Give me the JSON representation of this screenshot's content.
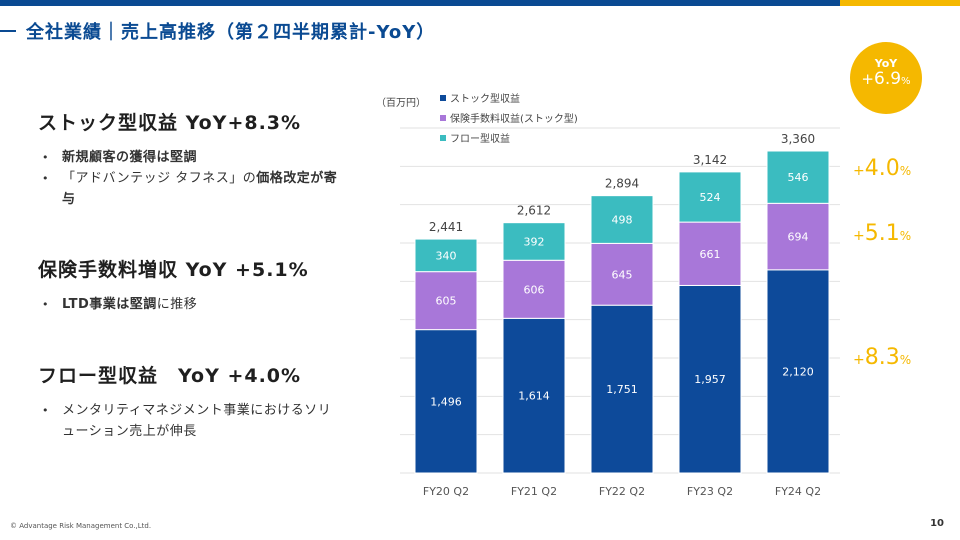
{
  "page": {
    "title": "全社業績｜売上高推移（第２四半期累計-YoY）",
    "copyright": "© Advantage Risk Management Co.,Ltd.",
    "page_number": "10"
  },
  "colors": {
    "brand_blue": "#0a4a92",
    "accent_yellow": "#f5b800",
    "stock": "#0d4a9a",
    "insurance": "#a877d9",
    "flow": "#3bbcc0"
  },
  "sections": [
    {
      "heading": "ストック型収益 YoY+8.3%",
      "bullets": [
        {
          "parts": [
            {
              "text": "新規顧客の獲得は堅調",
              "bold": true
            }
          ]
        },
        {
          "parts": [
            {
              "text": "「アドバンテッジ タフネス」の",
              "bold": false
            },
            {
              "text": "価格改定が寄与",
              "bold": true
            }
          ]
        }
      ]
    },
    {
      "heading": "保険手数料増収 YoY +5.1%",
      "bullets": [
        {
          "parts": [
            {
              "text": "LTD事業は堅調",
              "bold": true
            },
            {
              "text": "に推移",
              "bold": false
            }
          ]
        }
      ]
    },
    {
      "heading": "フロー型収益　YoY +4.0%",
      "bullets": [
        {
          "parts": [
            {
              "text": "メンタリティマネジメント事業におけるソリューション売上が伸長",
              "bold": false
            }
          ]
        }
      ]
    }
  ],
  "yoy_badge": {
    "label": "YoY",
    "sign": "+",
    "value": "6.9",
    "unit": "%"
  },
  "growth_labels": [
    {
      "sign": "+",
      "value": "4.0",
      "unit": "%"
    },
    {
      "sign": "+",
      "value": "5.1",
      "unit": "%"
    },
    {
      "sign": "+",
      "value": "8.3",
      "unit": "%"
    }
  ],
  "chart_data": {
    "type": "bar",
    "stacked": true,
    "unit_label": "（百万円）",
    "categories": [
      "FY20 Q2",
      "FY21 Q2",
      "FY22 Q2",
      "FY23 Q2",
      "FY24 Q2"
    ],
    "series": [
      {
        "name": "ストック型収益",
        "color": "#0d4a9a",
        "values": [
          1496,
          1614,
          1751,
          1957,
          2120
        ]
      },
      {
        "name": "保険手数料収益(ストック型)",
        "color": "#a877d9",
        "values": [
          605,
          606,
          645,
          661,
          694
        ]
      },
      {
        "name": "フロー型収益",
        "color": "#3bbcc0",
        "values": [
          340,
          392,
          498,
          524,
          546
        ]
      }
    ],
    "totals": [
      2441,
      2612,
      2894,
      3142,
      3360
    ],
    "ylim": [
      0,
      3600
    ],
    "grid": true,
    "legend_position": "top-left"
  }
}
